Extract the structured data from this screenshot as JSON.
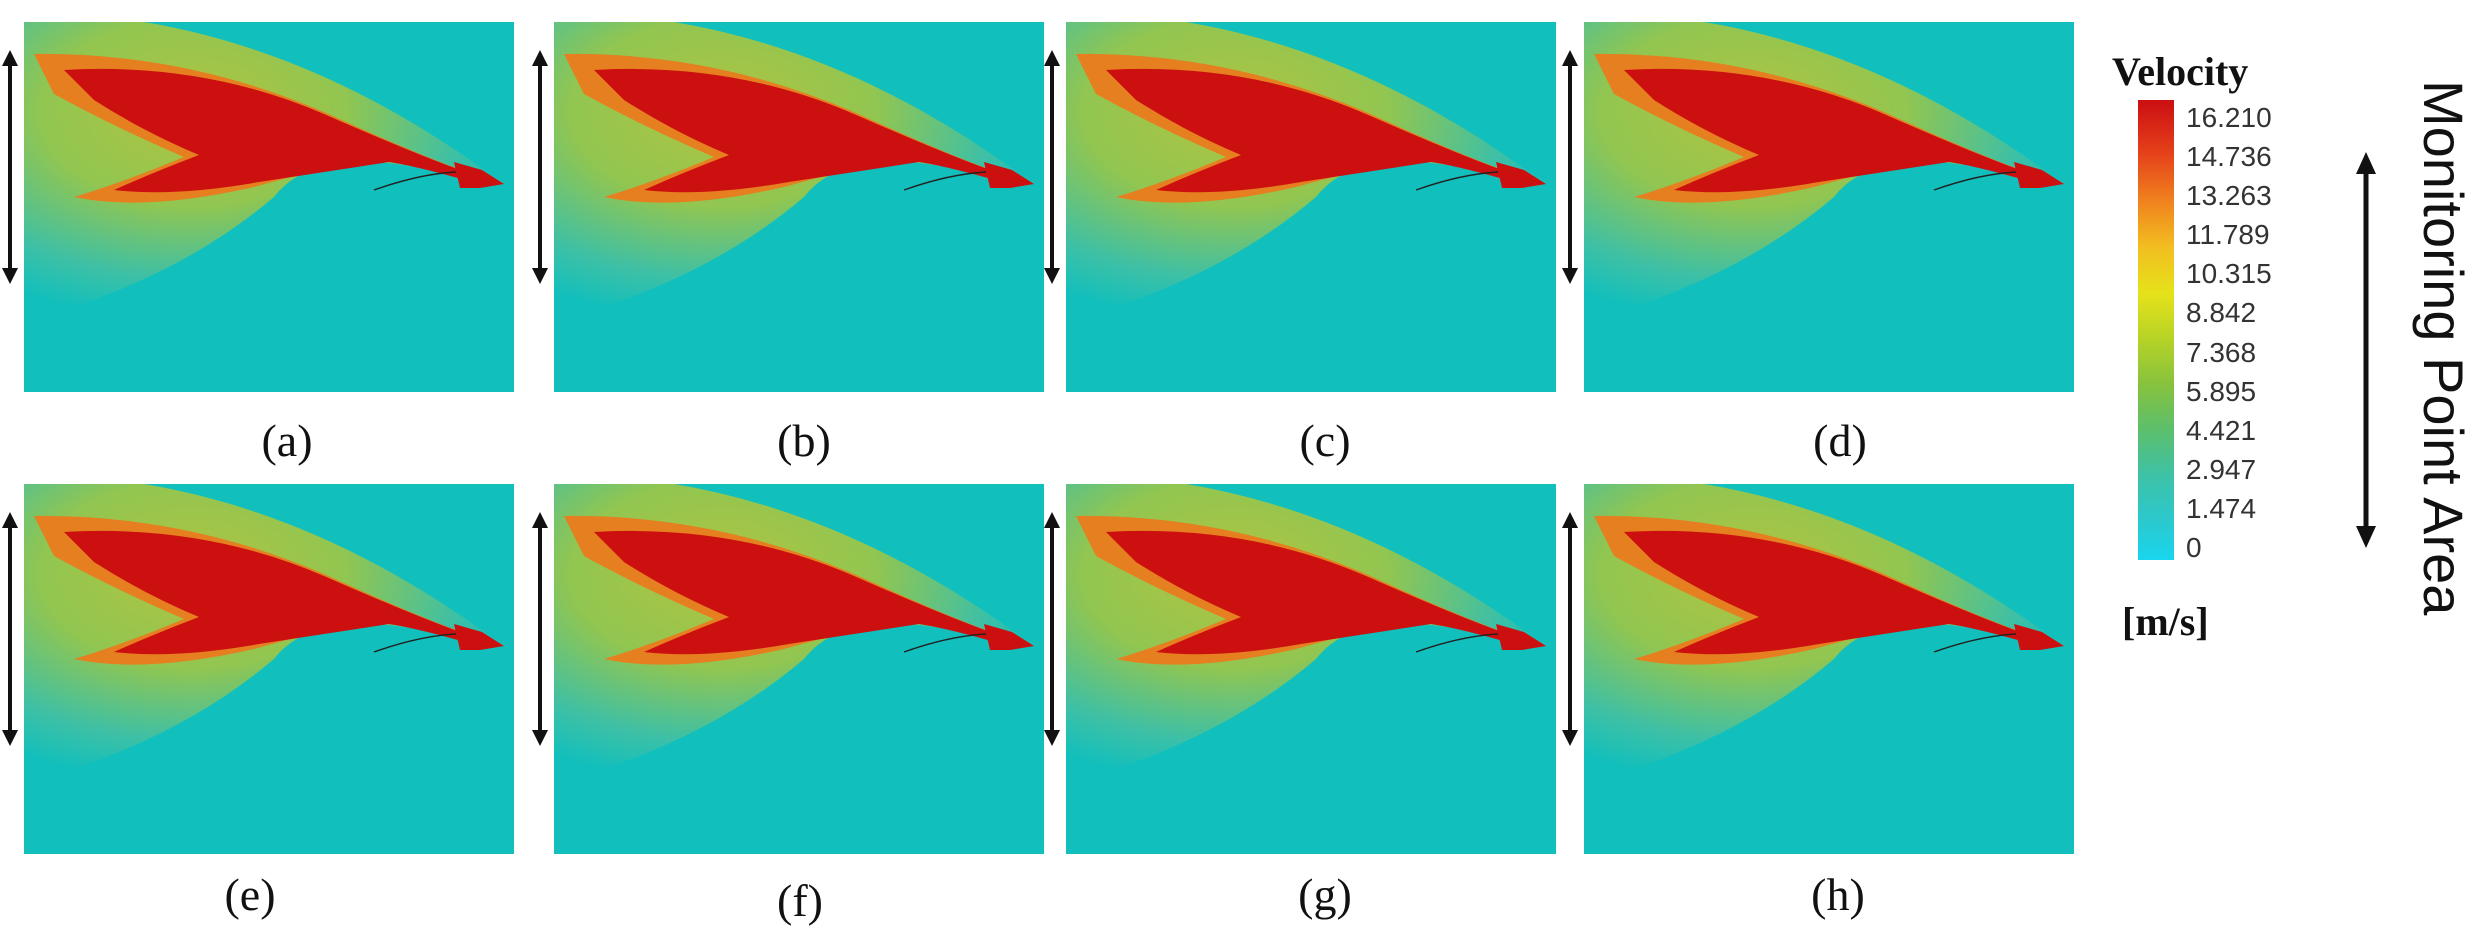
{
  "panels": [
    {
      "label": "(a)"
    },
    {
      "label": "(b)"
    },
    {
      "label": "(c)"
    },
    {
      "label": "(d)"
    },
    {
      "label": "(e)"
    },
    {
      "label": "(f)"
    },
    {
      "label": "(g)"
    },
    {
      "label": "(h)"
    }
  ],
  "legend": {
    "title": "Velocity",
    "unit": "[m/s]",
    "ticks": [
      "16.210",
      "14.736",
      "13.263",
      "11.789",
      "10.315",
      "8.842",
      "7.368",
      "5.895",
      "4.421",
      "2.947",
      "1.474",
      "0"
    ],
    "colors": [
      "#d50f12",
      "#e8481a",
      "#f28e1e",
      "#f2d11e",
      "#d6e11a",
      "#a8cf2c",
      "#78c04e",
      "#4fbf8a",
      "#38c6c0",
      "#1fd3e6"
    ]
  },
  "side_label": "Monitoring Point Area",
  "colors": {
    "background": "#11bfbc",
    "core": "#cc1010",
    "outer_glow": "#c8cc36"
  }
}
